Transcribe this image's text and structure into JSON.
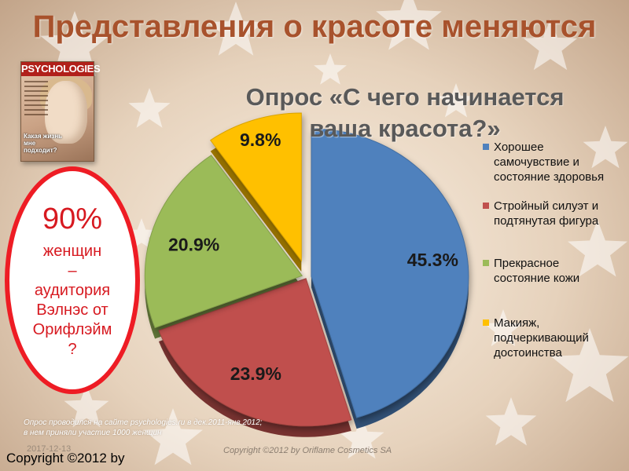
{
  "slide": {
    "title": "Представления о красоте меняются"
  },
  "magazine": {
    "name": "PSYCHOLOGIES",
    "headline": "Какая жизнь мне подходит?"
  },
  "callout": {
    "percent": "90%",
    "text_lines": [
      "женщин",
      "–",
      "аудитория",
      "Вэлнэс от",
      "Орифлэйм",
      "?"
    ]
  },
  "chart_data": {
    "type": "pie",
    "title_lines": [
      "Опрос «С чего начинается",
      "ваша красота?»"
    ],
    "slices": [
      {
        "label": "Хорошее самочувствие и состояние здоровья",
        "label_lines": [
          "Хорошее",
          "самочувствие и",
          "состояние здоровья"
        ],
        "value": 45.3,
        "display": "45.3%",
        "color": "#4f81bd"
      },
      {
        "label": "Стройный силуэт и подтянутая фигура",
        "label_lines": [
          "Стройный силуэт и",
          "подтянутая фигура"
        ],
        "value": 23.9,
        "display": "23.9%",
        "color": "#c0504d"
      },
      {
        "label": "Прекрасное состояние кожи",
        "label_lines": [
          "Прекрасное",
          "состояние кожи"
        ],
        "value": 20.9,
        "display": "20.9%",
        "color": "#9bbb59"
      },
      {
        "label": "Макияж, подчеркивающий достоинства",
        "label_lines": [
          "Макияж,",
          "подчеркивающий",
          "достоинства"
        ],
        "value": 9.8,
        "display": "9.8%",
        "color": "#ffc000"
      }
    ],
    "legend_position": "right"
  },
  "footer": {
    "survey_note_lines": [
      "Опрос проводился на сайте psychologies.ru в дек.2011-янв.2012;",
      "в нем приняли участие 1000 женщин"
    ],
    "date": "2017-12-13",
    "copyright_big": "Copyright ©2012 by",
    "copyright_small": "Copyright ©2012 by Oriflame Cosmetics SA"
  }
}
